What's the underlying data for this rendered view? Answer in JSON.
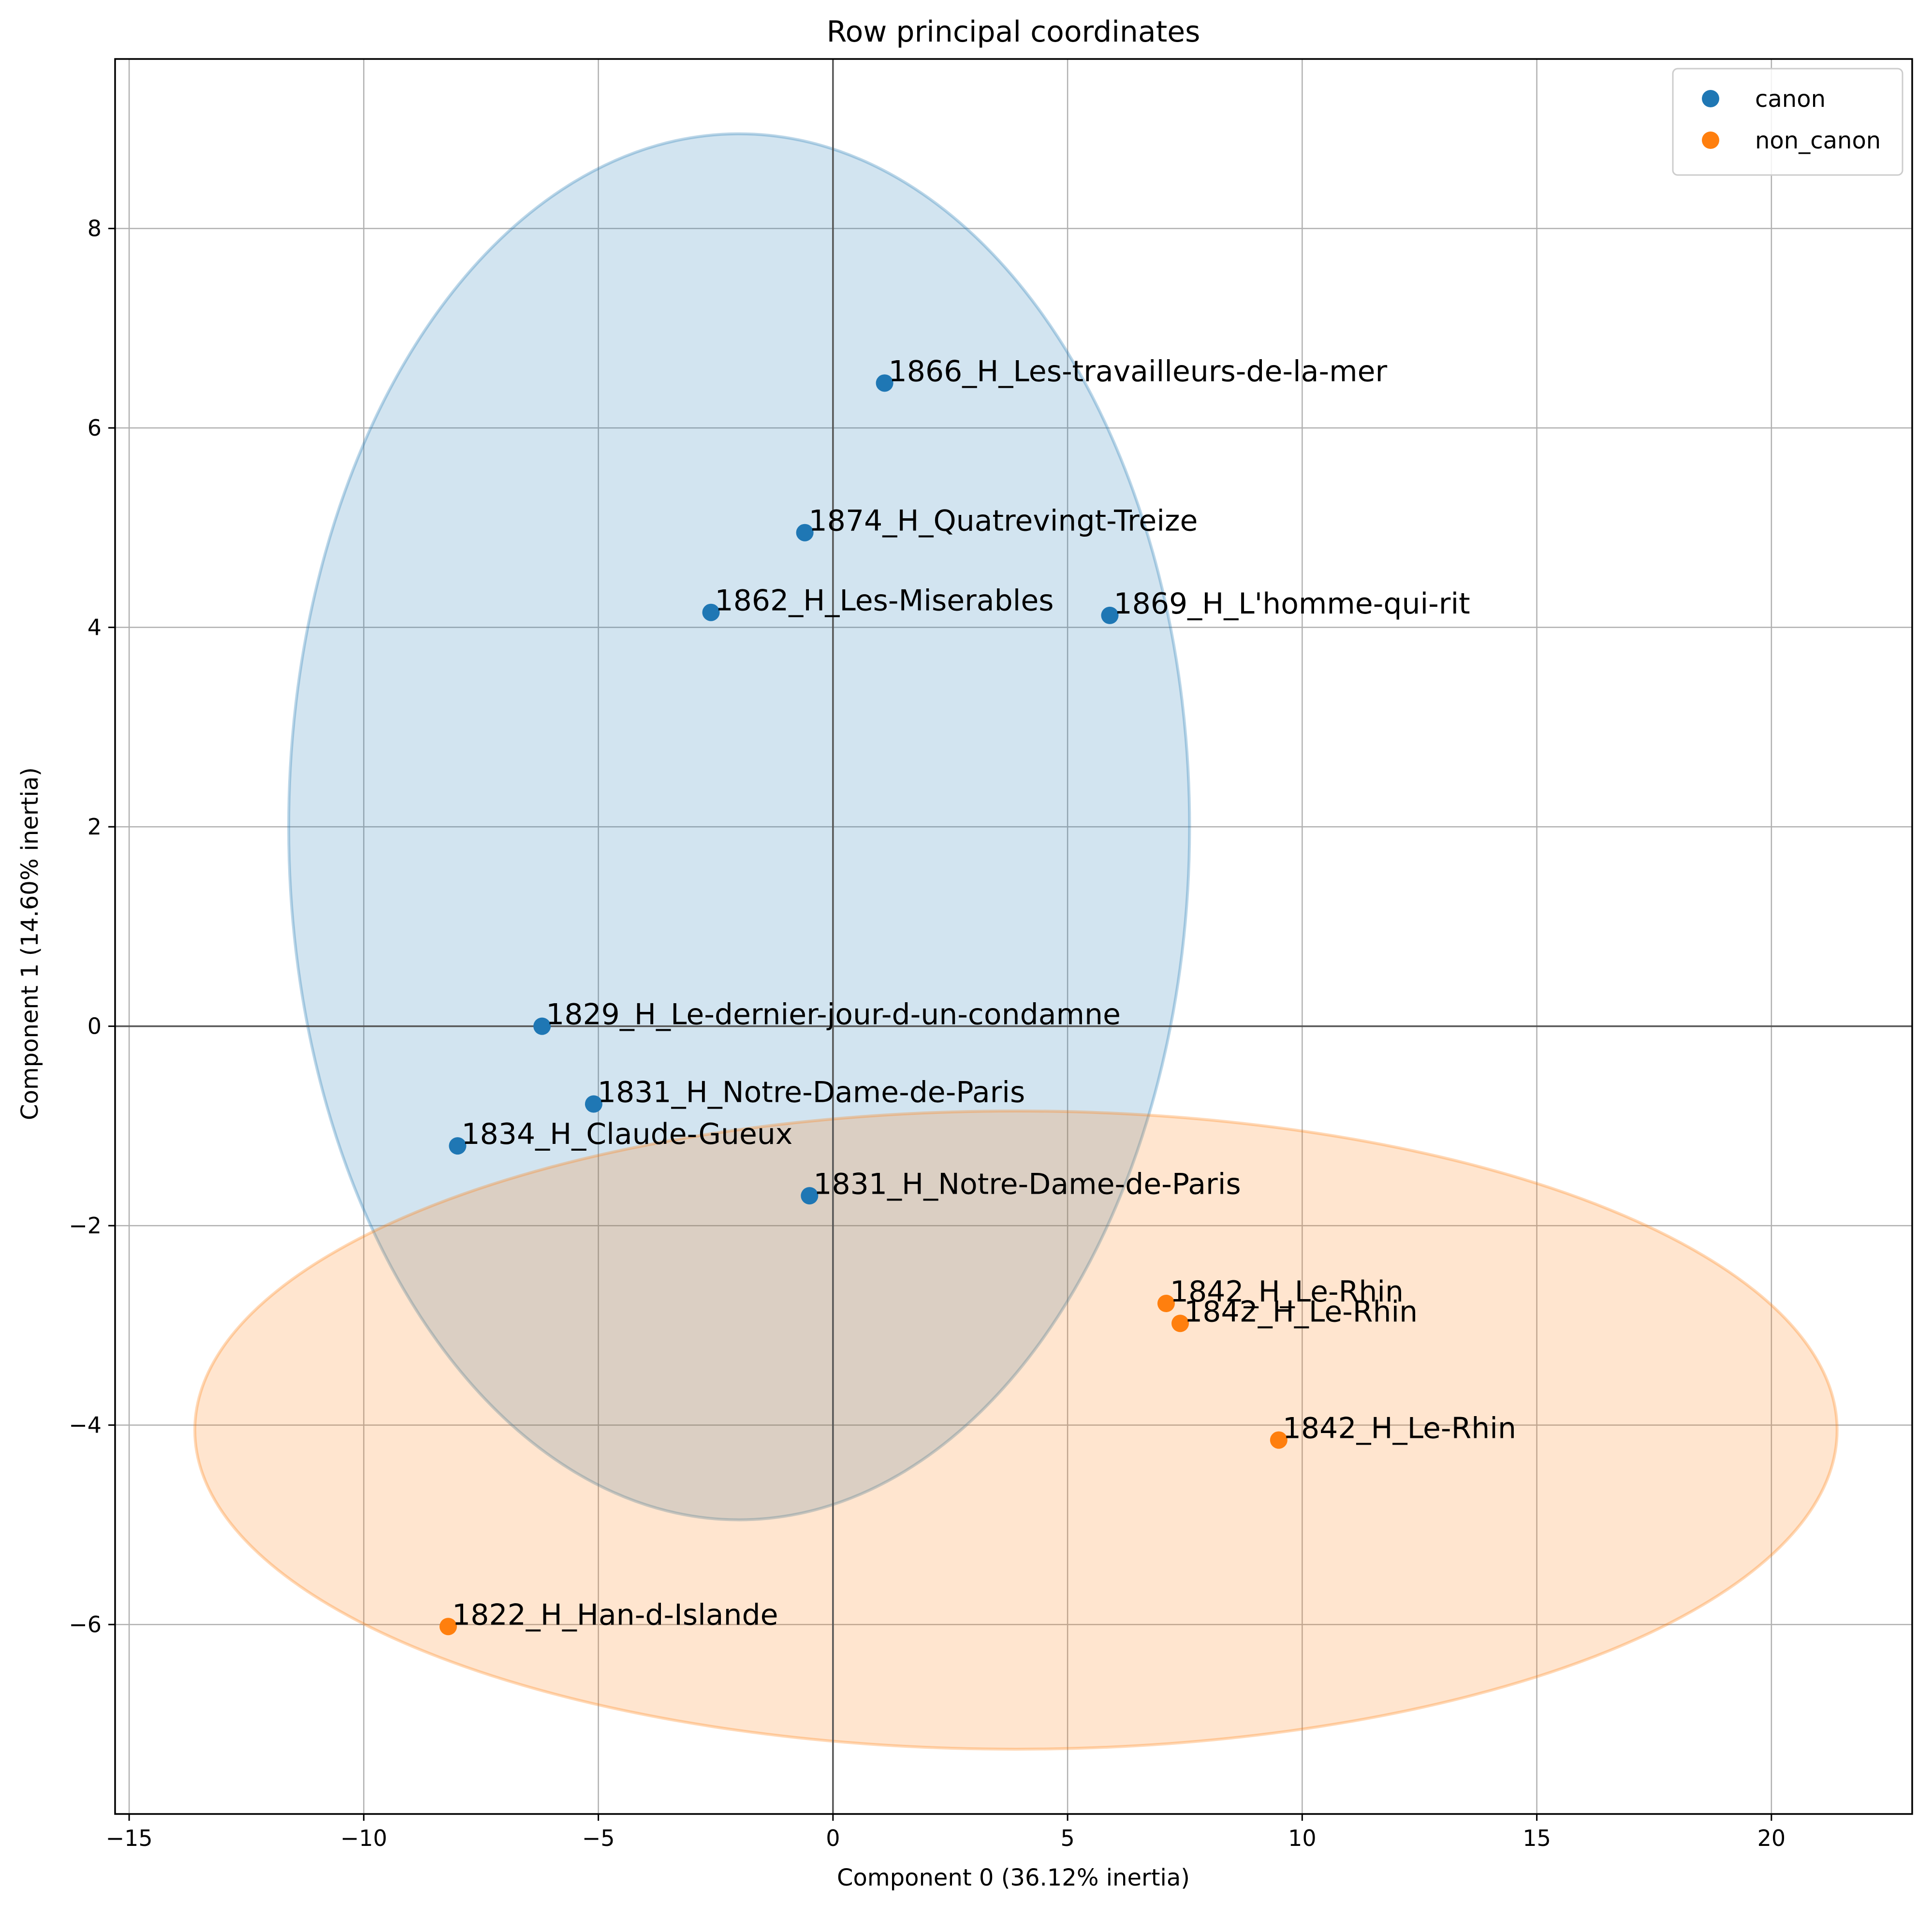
{
  "chart_data": {
    "type": "scatter",
    "title": "Row principal coordinates",
    "xlabel": "Component 0 (36.12% inertia)",
    "ylabel": "Component 1 (14.60% inertia)",
    "xlim": [
      -15.3,
      23.0
    ],
    "ylim": [
      -7.9,
      9.7
    ],
    "xticks": [
      -15,
      -10,
      -5,
      0,
      5,
      10,
      15,
      20
    ],
    "xtick_labels": [
      "−15",
      "−10",
      "−5",
      "0",
      "5",
      "10",
      "15",
      "20"
    ],
    "yticks": [
      -6,
      -4,
      -2,
      0,
      2,
      4,
      6,
      8
    ],
    "ytick_labels": [
      "−6",
      "−4",
      "−2",
      "0",
      "2",
      "4",
      "6",
      "8"
    ],
    "grid": true,
    "origin_lines": true,
    "legend_position": "top-right",
    "series": [
      {
        "name": "canon",
        "color": "#1f77b4",
        "ellipse": {
          "cx": -2.0,
          "cy": 2.0,
          "rx": 9.6,
          "ry": 6.95
        },
        "points": [
          {
            "x": 1.1,
            "y": 6.45,
            "label": "1866_H_Les-travailleurs-de-la-mer"
          },
          {
            "x": -0.6,
            "y": 4.95,
            "label": "1874_H_Quatrevingt-Treize"
          },
          {
            "x": -2.6,
            "y": 4.15,
            "label": "1862_H_Les-Miserables"
          },
          {
            "x": 5.9,
            "y": 4.12,
            "label": "1869_H_L'homme-qui-rit"
          },
          {
            "x": -6.2,
            "y": 0.0,
            "label": "1829_H_Le-dernier-jour-d-un-condamne"
          },
          {
            "x": -5.1,
            "y": -0.78,
            "label": "1831_H_Notre-Dame-de-Paris"
          },
          {
            "x": -8.0,
            "y": -1.2,
            "label": "1834_H_Claude-Gueux"
          },
          {
            "x": -0.5,
            "y": -1.7,
            "label": "1831_H_Notre-Dame-de-Paris"
          }
        ]
      },
      {
        "name": "non_canon",
        "color": "#ff7f0e",
        "ellipse": {
          "cx": 3.9,
          "cy": -4.05,
          "rx": 17.5,
          "ry": 3.2
        },
        "points": [
          {
            "x": 7.1,
            "y": -2.78,
            "label": "1842_H_Le-Rhin"
          },
          {
            "x": 7.4,
            "y": -2.98,
            "label": "1842_H_Le-Rhin"
          },
          {
            "x": 9.5,
            "y": -4.15,
            "label": "1842_H_Le-Rhin"
          },
          {
            "x": -8.2,
            "y": -6.02,
            "label": "1822_H_Han-d-Islande"
          }
        ]
      }
    ]
  }
}
